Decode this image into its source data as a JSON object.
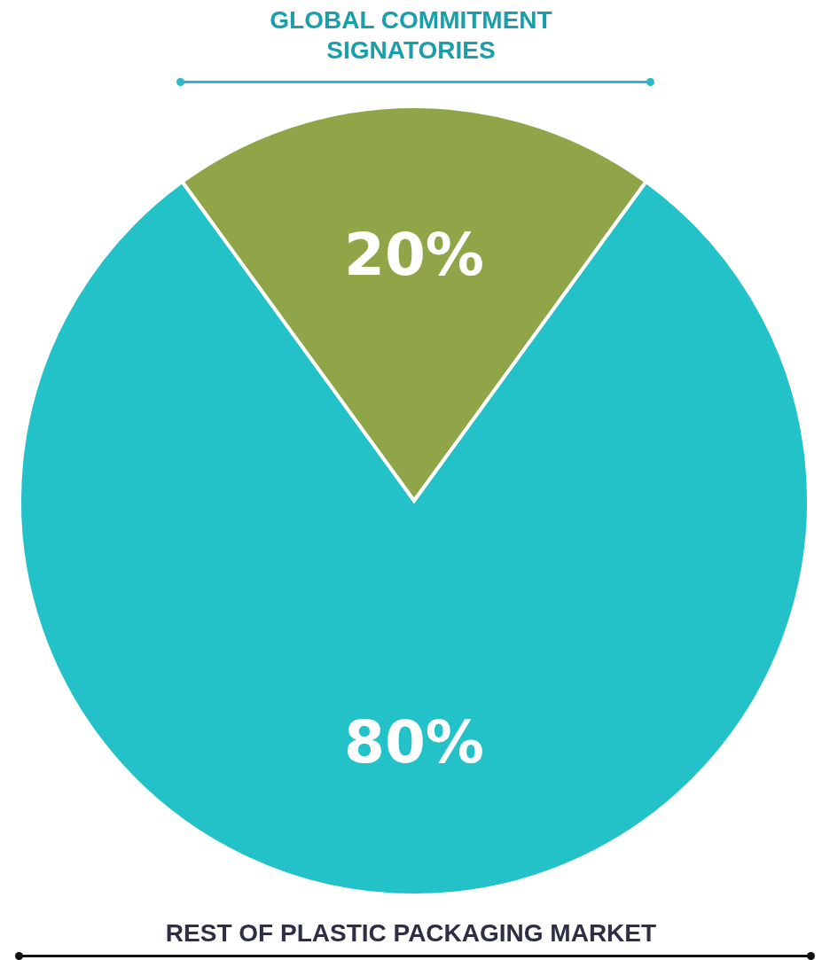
{
  "chart_data": {
    "type": "pie",
    "categories": [
      "GLOBAL COMMITMENT SIGNATORIES",
      "REST OF PLASTIC PACKAGING MARKET"
    ],
    "values": [
      20,
      80
    ],
    "colors": [
      "#8fa548",
      "#22c2c8"
    ],
    "value_labels": [
      "20%",
      "80%"
    ]
  }
}
